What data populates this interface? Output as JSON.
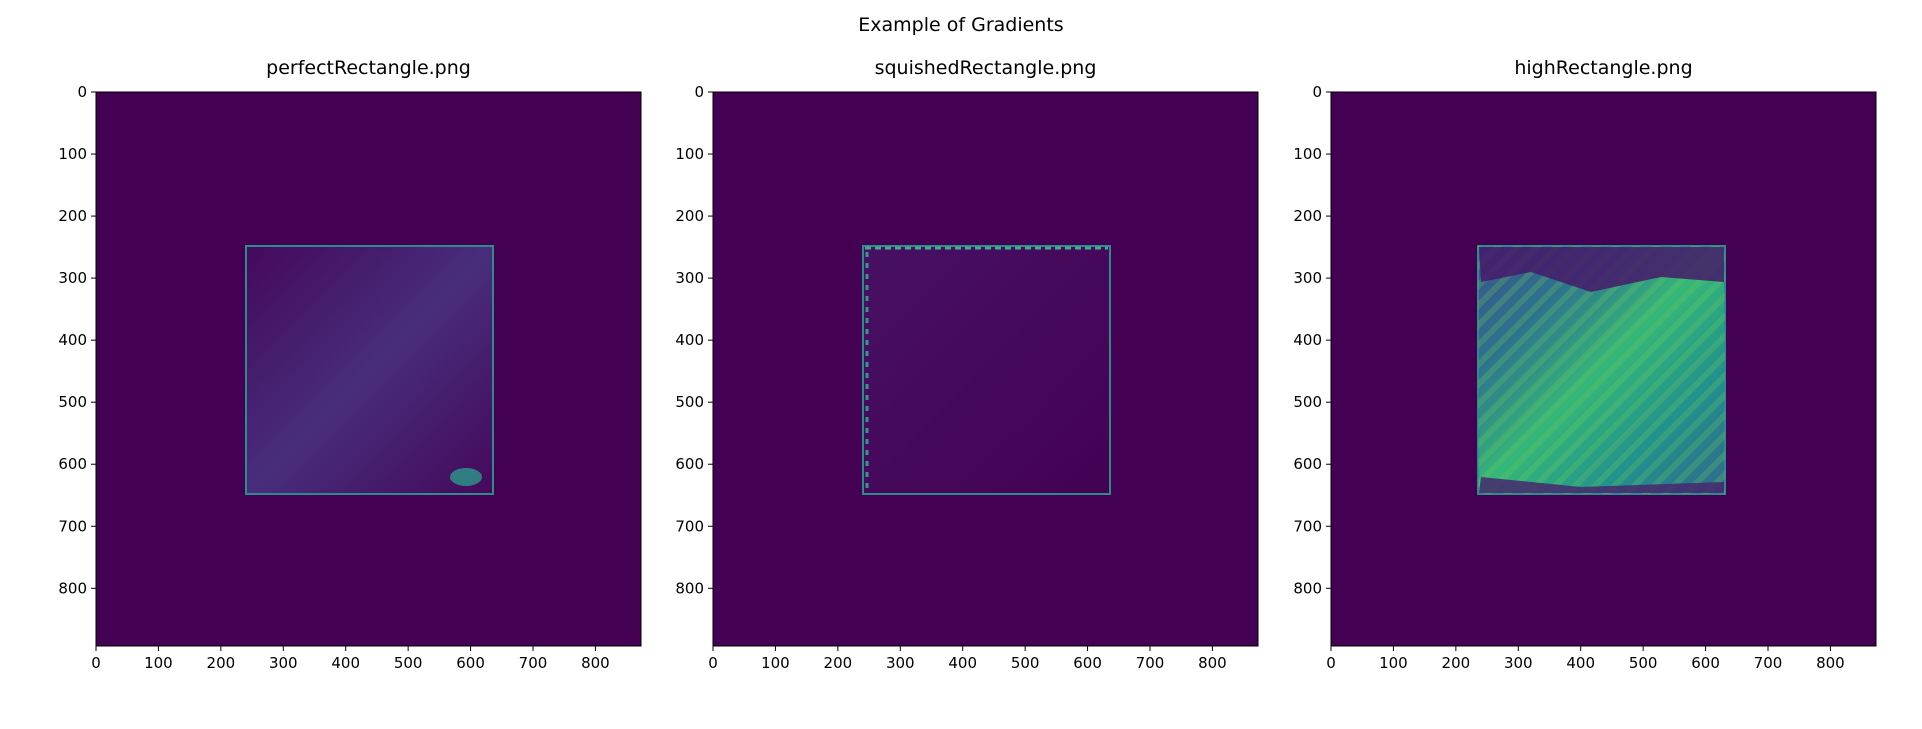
{
  "title": "Example of Gradients",
  "chart_data": [
    {
      "type": "image",
      "title": "perfectRectangle.png",
      "xlim": [
        0,
        873
      ],
      "ylim": [
        893,
        0
      ],
      "xticks": [
        0,
        100,
        200,
        300,
        400,
        500,
        600,
        700,
        800
      ],
      "yticks": [
        0,
        100,
        200,
        300,
        400,
        500,
        600,
        700,
        800
      ]
    },
    {
      "type": "image",
      "title": "squishedRectangle.png",
      "xlim": [
        0,
        873
      ],
      "ylim": [
        893,
        0
      ],
      "xticks": [
        0,
        100,
        200,
        300,
        400,
        500,
        600,
        700,
        800
      ],
      "yticks": [
        0,
        100,
        200,
        300,
        400,
        500,
        600,
        700,
        800
      ]
    },
    {
      "type": "image",
      "title": "highRectangle.png",
      "xlim": [
        0,
        873
      ],
      "ylim": [
        893,
        0
      ],
      "xticks": [
        0,
        100,
        200,
        300,
        400,
        500,
        600,
        700,
        800
      ],
      "yticks": [
        0,
        100,
        200,
        300,
        400,
        500,
        600,
        700,
        800
      ]
    }
  ]
}
